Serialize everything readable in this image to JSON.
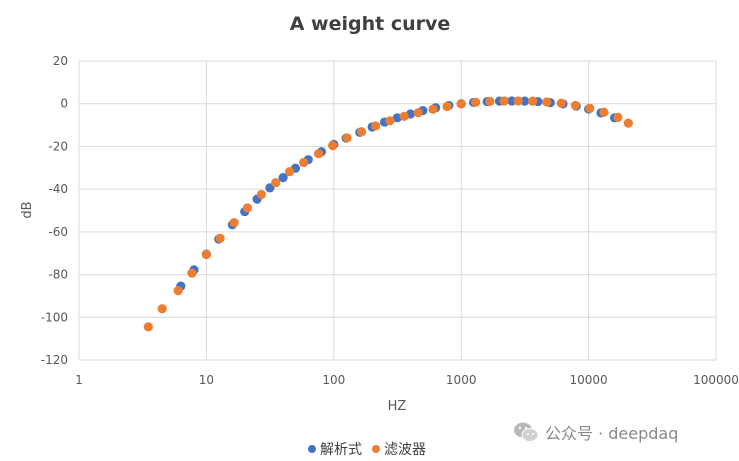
{
  "chart_data": {
    "type": "scatter",
    "title": "A weight curve",
    "xlabel": "HZ",
    "ylabel": "dB",
    "xscale": "log",
    "xlim": [
      1,
      100000
    ],
    "ylim": [
      -120,
      20
    ],
    "x_ticks": [
      "1",
      "10",
      "100",
      "1000",
      "10000",
      "100000"
    ],
    "y_ticks": [
      "20",
      "0",
      "-20",
      "-40",
      "-60",
      "-80",
      "-100",
      "-120"
    ],
    "grid": true,
    "legend_position": "bottom",
    "series": [
      {
        "name": "解析式",
        "color": "#4472C4",
        "x": [
          6.3,
          8,
          10,
          12.5,
          16,
          20,
          25,
          31.5,
          40,
          50,
          63,
          80,
          100,
          125,
          160,
          200,
          250,
          315,
          400,
          500,
          630,
          800,
          1000,
          1250,
          1600,
          2000,
          2500,
          3150,
          4000,
          5000,
          6300,
          8000,
          10000,
          12500,
          16000
        ],
        "y": [
          -85.4,
          -77.8,
          -70.4,
          -63.4,
          -56.7,
          -50.5,
          -44.7,
          -39.4,
          -34.6,
          -30.2,
          -26.2,
          -22.5,
          -19.1,
          -16.1,
          -13.4,
          -10.9,
          -8.6,
          -6.6,
          -4.8,
          -3.2,
          -1.9,
          -0.8,
          0,
          0.6,
          1.0,
          1.2,
          1.3,
          1.2,
          1.0,
          0.5,
          -0.1,
          -1.1,
          -2.5,
          -4.3,
          -6.6
        ]
      },
      {
        "name": "滤波器",
        "color": "#ED7D31",
        "x": [
          3.5,
          4.5,
          6,
          7.7,
          10,
          12.8,
          16.5,
          21,
          27,
          35,
          45,
          58,
          76,
          98,
          127,
          165,
          213,
          276,
          357,
          460,
          600,
          775,
          1000,
          1300,
          1680,
          2170,
          2800,
          3640,
          4700,
          6100,
          7880,
          10200,
          13200,
          17000,
          20500
        ],
        "y": [
          -104.5,
          -96.0,
          -87.5,
          -79.3,
          -70.6,
          -63.0,
          -55.7,
          -48.8,
          -42.5,
          -37.0,
          -31.8,
          -27.5,
          -23.4,
          -19.6,
          -16.0,
          -13.1,
          -10.4,
          -8.0,
          -5.9,
          -4.2,
          -2.6,
          -1.3,
          -0.1,
          0.7,
          1.1,
          1.3,
          1.3,
          1.2,
          0.8,
          0.2,
          -0.8,
          -2.1,
          -4.0,
          -6.4,
          -9.1
        ]
      }
    ]
  },
  "watermark": {
    "text": "公众号 · deepdaq",
    "icon": "wechat-icon"
  }
}
